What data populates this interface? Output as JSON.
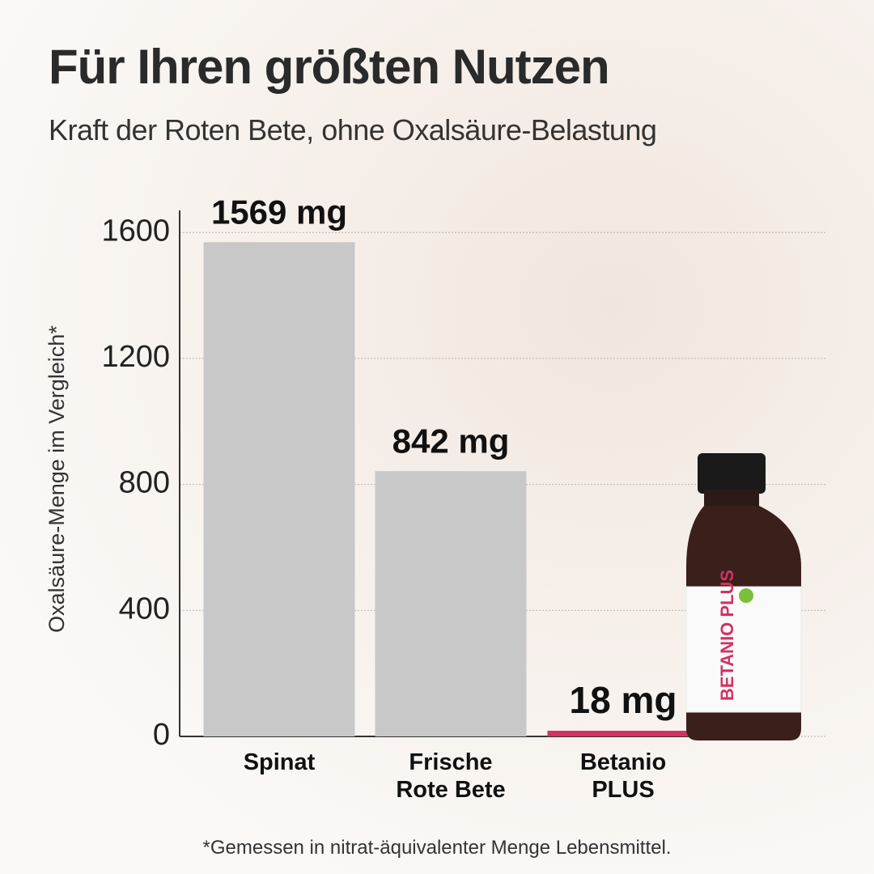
{
  "chart_data": {
    "type": "bar",
    "title": "Für Ihren größten Nutzen",
    "subtitle": "Kraft der Roten Bete, ohne Oxalsäure-Belastung",
    "y_label": "Oxalsäure-Menge im Vergleich*",
    "categories": [
      "Spinat",
      "Frische Rote Bete",
      "Betanio PLUS"
    ],
    "values": [
      1569,
      842,
      18
    ],
    "value_labels": [
      "1569 mg",
      "842 mg",
      "18 mg"
    ],
    "colors": [
      "#c8c8c8",
      "#c8c8c8",
      "#d23262"
    ],
    "ylim": [
      0,
      1670
    ],
    "yticks": [
      0,
      400,
      800,
      1200,
      1600
    ],
    "grid": true,
    "footnote": "*Gemessen in nitrat-äquivalenter Menge Lebensmittel.",
    "bottle_label": "BETANIO PLUS"
  }
}
